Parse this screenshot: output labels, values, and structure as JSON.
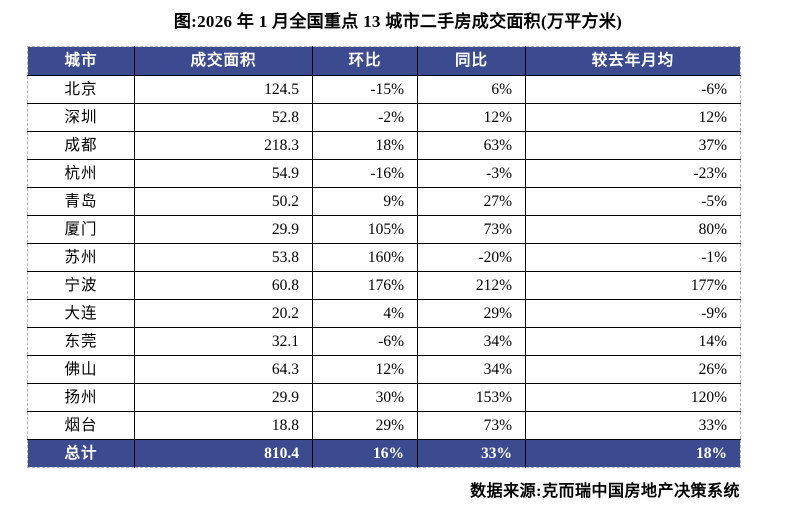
{
  "title": "图:2026 年 1 月全国重点 13 城市二手房成交面积(万平方米)",
  "table": {
    "columns": [
      "城市",
      "成交面积",
      "环比",
      "同比",
      "较去年月均"
    ],
    "rows": [
      [
        "北京",
        "124.5",
        "-15%",
        "6%",
        "-6%"
      ],
      [
        "深圳",
        "52.8",
        "-2%",
        "12%",
        "12%"
      ],
      [
        "成都",
        "218.3",
        "18%",
        "63%",
        "37%"
      ],
      [
        "杭州",
        "54.9",
        "-16%",
        "-3%",
        "-23%"
      ],
      [
        "青岛",
        "50.2",
        "9%",
        "27%",
        "-5%"
      ],
      [
        "厦门",
        "29.9",
        "105%",
        "73%",
        "80%"
      ],
      [
        "苏州",
        "53.8",
        "160%",
        "-20%",
        "-1%"
      ],
      [
        "宁波",
        "60.8",
        "176%",
        "212%",
        "177%"
      ],
      [
        "大连",
        "20.2",
        "4%",
        "29%",
        "-9%"
      ],
      [
        "东莞",
        "32.1",
        "-6%",
        "34%",
        "14%"
      ],
      [
        "佛山",
        "64.3",
        "12%",
        "34%",
        "26%"
      ],
      [
        "扬州",
        "29.9",
        "30%",
        "153%",
        "120%"
      ],
      [
        "烟台",
        "18.8",
        "29%",
        "73%",
        "33%"
      ]
    ],
    "total_row": [
      "总计",
      "810.4",
      "16%",
      "33%",
      "18%"
    ]
  },
  "footer": "数据来源:克而瑞中国房地产决策系统",
  "colors": {
    "header_bg": "#3c4b90",
    "header_text": "#ffffff",
    "body_text": "#000000",
    "inner_border": "#000000",
    "outer_dashed_border": "#b5b5b5"
  }
}
